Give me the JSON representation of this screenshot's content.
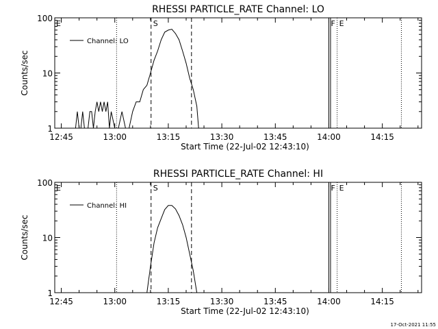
{
  "chart_data": [
    {
      "type": "line",
      "title": "RHESSI PARTICLE_RATE Channel: LO",
      "xlabel": "Start Time (22-Jul-02 12:43:10)",
      "ylabel": "Counts/sec",
      "yscale": "log",
      "ylim": [
        1,
        100
      ],
      "y_tick_labels": [
        "1",
        "10",
        "100"
      ],
      "x_tick_labels": [
        "12:45",
        "13:00",
        "13:15",
        "13:30",
        "13:45",
        "14:00",
        "14:15"
      ],
      "legend": "top-left",
      "series": [
        {
          "name": "Channel: LO",
          "x": [
            "12:49",
            "12:49:30",
            "12:50",
            "12:50:30",
            "12:51",
            "12:51:30",
            "12:52",
            "12:52:30",
            "12:53",
            "12:53:30",
            "12:54",
            "12:54:30",
            "12:55",
            "12:55:30",
            "12:56",
            "12:56:30",
            "12:57",
            "12:57:30",
            "12:58",
            "12:58:30",
            "12:59",
            "13:00",
            "13:01",
            "13:02",
            "13:03",
            "13:04",
            "13:05",
            "13:06",
            "13:07",
            "13:08",
            "13:09",
            "13:10",
            "13:11",
            "13:12",
            "13:13",
            "13:14",
            "13:15",
            "13:16",
            "13:17",
            "13:18",
            "13:19",
            "13:20",
            "13:21",
            "13:22",
            "13:23",
            "13:23:30"
          ],
          "values": [
            1,
            2,
            1,
            1,
            2,
            1,
            1,
            1,
            2,
            2,
            1,
            2,
            3,
            2,
            3,
            2,
            3,
            2,
            3,
            1,
            2,
            1,
            1,
            2,
            1,
            1,
            2,
            3,
            3,
            5,
            6,
            10,
            17,
            25,
            40,
            55,
            60,
            62,
            52,
            40,
            25,
            15,
            8,
            5,
            2.5,
            1
          ]
        }
      ],
      "markers": [
        {
          "label": "E",
          "time": "12:43:10",
          "style": "none"
        },
        {
          "label": "",
          "time": "13:00:30",
          "style": "dotted"
        },
        {
          "label": "S",
          "time": "13:10:10",
          "style": "dashed"
        },
        {
          "label": "",
          "time": "13:21:30",
          "style": "dashed"
        },
        {
          "label": "F",
          "time": "14:00:00",
          "style": "solid"
        },
        {
          "label": "E",
          "time": "14:02:20",
          "style": "dotted"
        },
        {
          "label": "",
          "time": "14:20:20",
          "style": "dotted"
        }
      ]
    },
    {
      "type": "line",
      "title": "RHESSI PARTICLE_RATE Channel: HI",
      "xlabel": "Start Time (22-Jul-02 12:43:10)",
      "ylabel": "Counts/sec",
      "yscale": "log",
      "ylim": [
        1,
        100
      ],
      "y_tick_labels": [
        "1",
        "10",
        "100"
      ],
      "x_tick_labels": [
        "12:45",
        "13:00",
        "13:15",
        "13:30",
        "13:45",
        "14:00",
        "14:15"
      ],
      "legend": "top-left",
      "series": [
        {
          "name": "Channel: HI",
          "x": [
            "13:09",
            "13:10",
            "13:11",
            "13:12",
            "13:13",
            "13:14",
            "13:15",
            "13:16",
            "13:17",
            "13:18",
            "13:19",
            "13:20",
            "13:21",
            "13:22",
            "13:23"
          ],
          "values": [
            1,
            3,
            8,
            15,
            22,
            32,
            38,
            38,
            33,
            25,
            17,
            10,
            5,
            2.5,
            1
          ]
        }
      ],
      "markers": [
        {
          "label": "E",
          "time": "12:43:10",
          "style": "none"
        },
        {
          "label": "",
          "time": "13:00:30",
          "style": "dotted"
        },
        {
          "label": "S",
          "time": "13:10:10",
          "style": "dashed"
        },
        {
          "label": "",
          "time": "13:21:30",
          "style": "dashed"
        },
        {
          "label": "F",
          "time": "14:00:00",
          "style": "solid"
        },
        {
          "label": "E",
          "time": "14:02:20",
          "style": "dotted"
        },
        {
          "label": "",
          "time": "14:20:20",
          "style": "dotted"
        }
      ]
    }
  ],
  "footer": {
    "timestamp": "17-Oct-2021 11:55"
  }
}
